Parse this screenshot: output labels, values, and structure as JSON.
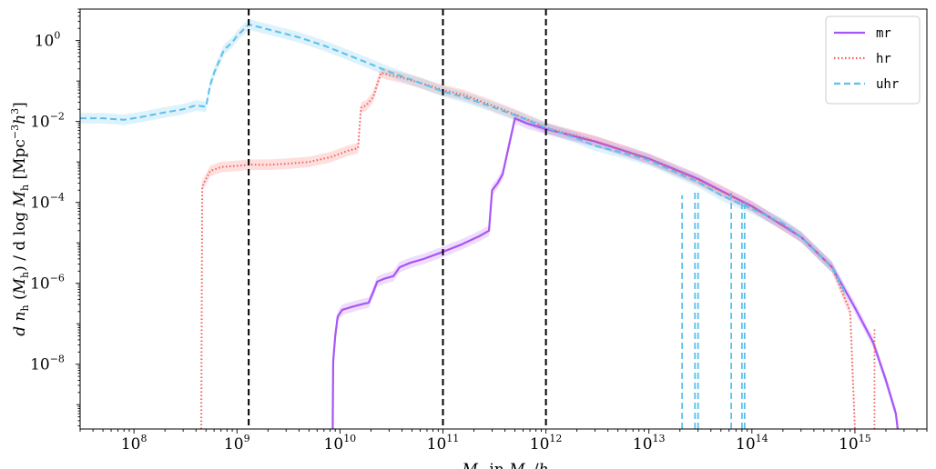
{
  "chart_data": {
    "type": "line",
    "xscale": "log",
    "yscale": "log",
    "xlim": [
      30000000,
      5000000000000000
    ],
    "ylim": [
      2.5e-10,
      6
    ],
    "xlabel": "M_h in M_⊙/h",
    "ylabel": "d n_h (M_h) / d log M_h [Mpc^-3 h^3]",
    "grid": false,
    "legend_position": "top-right",
    "x_ticks": [
      {
        "value": 100000000,
        "base": "10",
        "exp": "8"
      },
      {
        "value": 1000000000,
        "base": "10",
        "exp": "9"
      },
      {
        "value": 10000000000,
        "base": "10",
        "exp": "10"
      },
      {
        "value": 100000000000,
        "base": "10",
        "exp": "11"
      },
      {
        "value": 1000000000000,
        "base": "10",
        "exp": "12"
      },
      {
        "value": 10000000000000,
        "base": "10",
        "exp": "13"
      },
      {
        "value": 100000000000000,
        "base": "10",
        "exp": "14"
      },
      {
        "value": 1000000000000000,
        "base": "10",
        "exp": "15"
      }
    ],
    "y_ticks": [
      {
        "value": 1,
        "base": "10",
        "exp": "0"
      },
      {
        "value": 0.01,
        "base": "10",
        "exp": "−2"
      },
      {
        "value": 0.0001,
        "base": "10",
        "exp": "−4"
      },
      {
        "value": 1e-06,
        "base": "10",
        "exp": "−6"
      },
      {
        "value": 1e-08,
        "base": "10",
        "exp": "−8"
      }
    ],
    "vertical_lines": [
      1300000000,
      100000000000,
      1000000000000
    ],
    "series": [
      {
        "name": "mr",
        "color": "#a855f7",
        "style": "solid",
        "points": [
          [
            8500000000.0,
            2.5e-10
          ],
          [
            8600000000.0,
            1.2e-08
          ],
          [
            9000000000.0,
            5e-08
          ],
          [
            9500000000.0,
            1.5e-07
          ],
          [
            10500000000.0,
            2.2e-07
          ],
          [
            13000000000.0,
            2.6e-07
          ],
          [
            16000000000.0,
            3e-07
          ],
          [
            19000000000.0,
            3.3e-07
          ],
          [
            21000000000.0,
            6e-07
          ],
          [
            23000000000.0,
            1.1e-06
          ],
          [
            27000000000.0,
            1.3e-06
          ],
          [
            33000000000.0,
            1.5e-06
          ],
          [
            38000000000.0,
            2.5e-06
          ],
          [
            48000000000.0,
            3.2e-06
          ],
          [
            65000000000.0,
            4e-06
          ],
          [
            100000000000.0,
            6e-06
          ],
          [
            150000000000.0,
            9e-06
          ],
          [
            230000000000.0,
            1.5e-05
          ],
          [
            280000000000.0,
            2e-05
          ],
          [
            300000000000.0,
            0.0002
          ],
          [
            340000000000.0,
            0.0003
          ],
          [
            380000000000.0,
            0.0005
          ],
          [
            500000000000.0,
            0.012
          ],
          [
            650000000000.0,
            0.009
          ],
          [
            1000000000000.0,
            0.0065
          ],
          [
            3000000000000.0,
            0.0032
          ],
          [
            10000000000000.0,
            0.0012
          ],
          [
            30000000000000.0,
            0.00038
          ],
          [
            100000000000000.0,
            8e-05
          ],
          [
            300000000000000.0,
            1.4e-05
          ],
          [
            600000000000000.0,
            2.5e-06
          ],
          [
            1000000000000000.0,
            2.5e-07
          ],
          [
            1500000000000000.0,
            3.5e-08
          ],
          [
            2000000000000000.0,
            4e-09
          ],
          [
            2500000000000000.0,
            6e-10
          ],
          [
            2600000000000000.0,
            2.5e-10
          ]
        ]
      },
      {
        "name": "hr",
        "color": "#f4605a",
        "style": "dotted",
        "points": [
          [
            450000000.0,
            2.5e-10
          ],
          [
            460000000.0,
            0.00025
          ],
          [
            550000000.0,
            0.0006
          ],
          [
            700000000.0,
            0.00075
          ],
          [
            1000000000.0,
            0.0008
          ],
          [
            1300000000.0,
            0.00085
          ],
          [
            2000000000.0,
            0.00085
          ],
          [
            3000000000.0,
            0.0009
          ],
          [
            5000000000.0,
            0.001
          ],
          [
            8000000000.0,
            0.0013
          ],
          [
            12000000000.0,
            0.0019
          ],
          [
            15000000000.0,
            0.0022
          ],
          [
            16000000000.0,
            0.022
          ],
          [
            18000000000.0,
            0.025
          ],
          [
            21000000000.0,
            0.04
          ],
          [
            25000000000.0,
            0.16
          ],
          [
            40000000000.0,
            0.12
          ],
          [
            60000000000.0,
            0.09
          ],
          [
            100000000000.0,
            0.06
          ],
          [
            160000000000.0,
            0.045
          ],
          [
            300000000000.0,
            0.025
          ],
          [
            500000000000.0,
            0.015
          ],
          [
            1000000000000.0,
            0.007
          ],
          [
            3000000000000.0,
            0.0033
          ],
          [
            10000000000000.0,
            0.0012
          ],
          [
            30000000000000.0,
            0.00036
          ],
          [
            100000000000000.0,
            8e-05
          ],
          [
            300000000000000.0,
            1.4e-05
          ],
          [
            600000000000000.0,
            2.5e-06
          ],
          [
            900000000000000.0,
            2e-07
          ],
          [
            1000000000000000.0,
            2.5e-10
          ]
        ]
      },
      {
        "name": "uhr",
        "color": "#5bc0ec",
        "style": "dashed",
        "points": [
          [
            30000000.0,
            0.012
          ],
          [
            50000000.0,
            0.012
          ],
          [
            80000000.0,
            0.011
          ],
          [
            120000000.0,
            0.013
          ],
          [
            180000000.0,
            0.016
          ],
          [
            300000000.0,
            0.02
          ],
          [
            400000000.0,
            0.025
          ],
          [
            500000000.0,
            0.023
          ],
          [
            550000000.0,
            0.08
          ],
          [
            600000000.0,
            0.16
          ],
          [
            750000000.0,
            0.6
          ],
          [
            900000000.0,
            0.9
          ],
          [
            1000000000.0,
            1.3
          ],
          [
            1300000000.0,
            2.5
          ],
          [
            2000000000.0,
            1.9
          ],
          [
            4000000000.0,
            1.2
          ],
          [
            7000000000.0,
            0.75
          ],
          [
            15000000000.0,
            0.35
          ],
          [
            30000000000.0,
            0.17
          ],
          [
            60000000000.0,
            0.09
          ],
          [
            100000000000.0,
            0.055
          ],
          [
            160000000000.0,
            0.04
          ],
          [
            300000000000.0,
            0.023
          ],
          [
            600000000000.0,
            0.012
          ],
          [
            1000000000000.0,
            0.007
          ],
          [
            2000000000000.0,
            0.0038
          ],
          [
            3000000000000.0,
            0.0025
          ],
          [
            5000000000000.0,
            0.0018
          ],
          [
            10000000000000.0,
            0.0011
          ],
          [
            20000000000000.0,
            0.0005
          ],
          [
            30000000000000.0,
            0.00032
          ],
          [
            50000000000000.0,
            0.00015
          ],
          [
            100000000000000.0,
            7e-05
          ],
          [
            200000000000000.0,
            3e-05
          ],
          [
            300000000000000.0,
            1.4e-05
          ],
          [
            600000000000000.0,
            2.5e-06
          ],
          [
            800000000000000.0,
            6e-07
          ]
        ]
      }
    ],
    "spikes": [
      {
        "series": "uhr",
        "x": 21000000000000.0,
        "ymin": 2.5e-10,
        "ymax": 0.00015
      },
      {
        "series": "uhr",
        "x": 28000000000000.0,
        "ymin": 2.5e-10,
        "ymax": 0.0002
      },
      {
        "series": "uhr",
        "x": 30000000000000.0,
        "ymin": 2.5e-10,
        "ymax": 0.0002
      },
      {
        "series": "uhr",
        "x": 63000000000000.0,
        "ymin": 2.5e-10,
        "ymax": 0.0002
      },
      {
        "series": "uhr",
        "x": 80000000000000.0,
        "ymin": 2.5e-10,
        "ymax": 0.0001
      },
      {
        "series": "uhr",
        "x": 85000000000000.0,
        "ymin": 2.5e-10,
        "ymax": 0.0001
      },
      {
        "series": "hr",
        "x": 1550000000000000.0,
        "ymin": 2.5e-10,
        "ymax": 8e-08
      }
    ]
  }
}
